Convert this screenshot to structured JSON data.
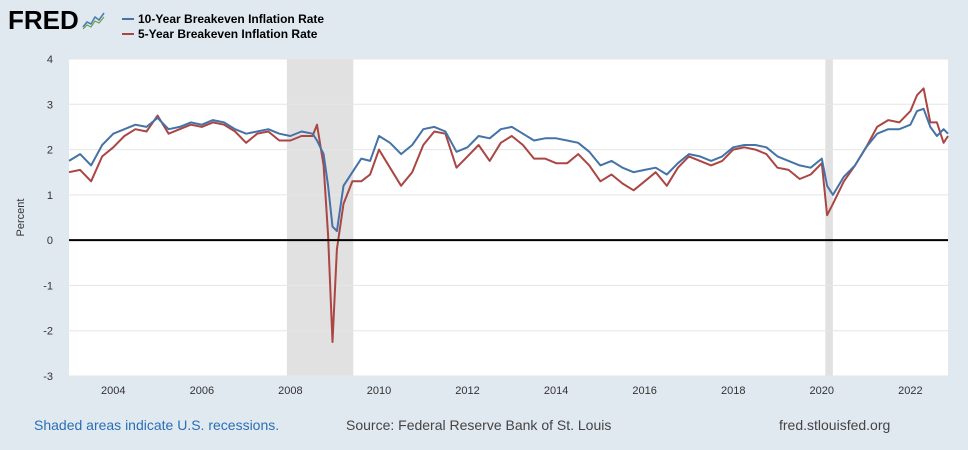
{
  "logo": {
    "text": "FRED",
    "icon": "fred-chart-icon"
  },
  "legend": [
    {
      "label": "10-Year Breakeven Inflation Rate",
      "color": "#4572a7"
    },
    {
      "label": "5-Year Breakeven Inflation Rate",
      "color": "#aa4643"
    }
  ],
  "footer": {
    "recession_note": "Shaded areas indicate U.S. recessions.",
    "source": "Source: Federal Reserve Bank of St. Louis",
    "site": "fred.stlouisfed.org"
  },
  "chart_data": {
    "type": "line",
    "ylabel": "Percent",
    "xlabel": "",
    "ylim": [
      -3,
      4
    ],
    "xlim": [
      2003.0,
      2022.85
    ],
    "yticks": [
      4,
      3,
      2,
      1,
      0,
      -1,
      -2,
      -3
    ],
    "xticks": [
      2004,
      2006,
      2008,
      2010,
      2012,
      2014,
      2016,
      2018,
      2020,
      2022
    ],
    "grid": "horizontal",
    "zero_line": true,
    "recessions": [
      [
        2007.92,
        2009.42
      ],
      [
        2020.08,
        2020.25
      ]
    ],
    "series": [
      {
        "name": "10-Year Breakeven Inflation Rate",
        "color": "#4572a7",
        "x": [
          2003.0,
          2003.25,
          2003.5,
          2003.75,
          2004.0,
          2004.25,
          2004.5,
          2004.75,
          2005.0,
          2005.25,
          2005.5,
          2005.75,
          2006.0,
          2006.25,
          2006.5,
          2006.75,
          2007.0,
          2007.25,
          2007.5,
          2007.75,
          2008.0,
          2008.25,
          2008.5,
          2008.6,
          2008.75,
          2008.85,
          2008.95,
          2009.05,
          2009.2,
          2009.4,
          2009.6,
          2009.8,
          2010.0,
          2010.25,
          2010.5,
          2010.75,
          2011.0,
          2011.25,
          2011.5,
          2011.75,
          2012.0,
          2012.25,
          2012.5,
          2012.75,
          2013.0,
          2013.25,
          2013.5,
          2013.75,
          2014.0,
          2014.25,
          2014.5,
          2014.75,
          2015.0,
          2015.25,
          2015.5,
          2015.75,
          2016.0,
          2016.25,
          2016.5,
          2016.75,
          2017.0,
          2017.25,
          2017.5,
          2017.75,
          2018.0,
          2018.25,
          2018.5,
          2018.75,
          2019.0,
          2019.25,
          2019.5,
          2019.75,
          2020.0,
          2020.12,
          2020.25,
          2020.5,
          2020.75,
          2021.0,
          2021.25,
          2021.5,
          2021.75,
          2022.0,
          2022.15,
          2022.3,
          2022.45,
          2022.6,
          2022.75,
          2022.85
        ],
        "y": [
          1.75,
          1.9,
          1.65,
          2.1,
          2.35,
          2.45,
          2.55,
          2.5,
          2.7,
          2.45,
          2.5,
          2.6,
          2.55,
          2.65,
          2.6,
          2.45,
          2.35,
          2.4,
          2.45,
          2.35,
          2.3,
          2.4,
          2.35,
          2.2,
          1.9,
          1.2,
          0.3,
          0.2,
          1.2,
          1.5,
          1.8,
          1.75,
          2.3,
          2.15,
          1.9,
          2.1,
          2.45,
          2.5,
          2.4,
          1.95,
          2.05,
          2.3,
          2.25,
          2.45,
          2.5,
          2.35,
          2.2,
          2.25,
          2.25,
          2.2,
          2.15,
          1.95,
          1.65,
          1.75,
          1.6,
          1.5,
          1.55,
          1.6,
          1.45,
          1.7,
          1.9,
          1.85,
          1.75,
          1.85,
          2.05,
          2.1,
          2.1,
          2.05,
          1.85,
          1.75,
          1.65,
          1.6,
          1.8,
          1.2,
          1.0,
          1.4,
          1.65,
          2.05,
          2.35,
          2.45,
          2.45,
          2.55,
          2.85,
          2.9,
          2.5,
          2.3,
          2.45,
          2.35
        ]
      },
      {
        "name": "5-Year Breakeven Inflation Rate",
        "color": "#aa4643",
        "x": [
          2003.0,
          2003.25,
          2003.5,
          2003.75,
          2004.0,
          2004.25,
          2004.5,
          2004.75,
          2005.0,
          2005.25,
          2005.5,
          2005.75,
          2006.0,
          2006.25,
          2006.5,
          2006.75,
          2007.0,
          2007.25,
          2007.5,
          2007.75,
          2008.0,
          2008.25,
          2008.5,
          2008.6,
          2008.75,
          2008.85,
          2008.95,
          2009.05,
          2009.2,
          2009.4,
          2009.6,
          2009.8,
          2010.0,
          2010.25,
          2010.5,
          2010.75,
          2011.0,
          2011.25,
          2011.5,
          2011.75,
          2012.0,
          2012.25,
          2012.5,
          2012.75,
          2013.0,
          2013.25,
          2013.5,
          2013.75,
          2014.0,
          2014.25,
          2014.5,
          2014.75,
          2015.0,
          2015.25,
          2015.5,
          2015.75,
          2016.0,
          2016.25,
          2016.5,
          2016.75,
          2017.0,
          2017.25,
          2017.5,
          2017.75,
          2018.0,
          2018.25,
          2018.5,
          2018.75,
          2019.0,
          2019.25,
          2019.5,
          2019.75,
          2020.0,
          2020.12,
          2020.25,
          2020.5,
          2020.75,
          2021.0,
          2021.25,
          2021.5,
          2021.75,
          2022.0,
          2022.15,
          2022.3,
          2022.45,
          2022.6,
          2022.75,
          2022.85
        ],
        "y": [
          1.5,
          1.55,
          1.3,
          1.85,
          2.05,
          2.3,
          2.45,
          2.4,
          2.75,
          2.35,
          2.45,
          2.55,
          2.5,
          2.6,
          2.55,
          2.4,
          2.15,
          2.35,
          2.4,
          2.2,
          2.2,
          2.3,
          2.3,
          2.55,
          1.65,
          0.1,
          -2.25,
          -0.2,
          0.8,
          1.3,
          1.3,
          1.45,
          2.0,
          1.6,
          1.2,
          1.5,
          2.1,
          2.4,
          2.35,
          1.6,
          1.85,
          2.1,
          1.75,
          2.15,
          2.3,
          2.1,
          1.8,
          1.8,
          1.7,
          1.7,
          1.9,
          1.65,
          1.3,
          1.45,
          1.25,
          1.1,
          1.3,
          1.5,
          1.2,
          1.6,
          1.85,
          1.75,
          1.65,
          1.75,
          2.0,
          2.05,
          2.0,
          1.9,
          1.6,
          1.55,
          1.35,
          1.45,
          1.7,
          0.55,
          0.8,
          1.3,
          1.65,
          2.05,
          2.5,
          2.65,
          2.6,
          2.85,
          3.2,
          3.35,
          2.6,
          2.6,
          2.15,
          2.3
        ]
      }
    ]
  }
}
